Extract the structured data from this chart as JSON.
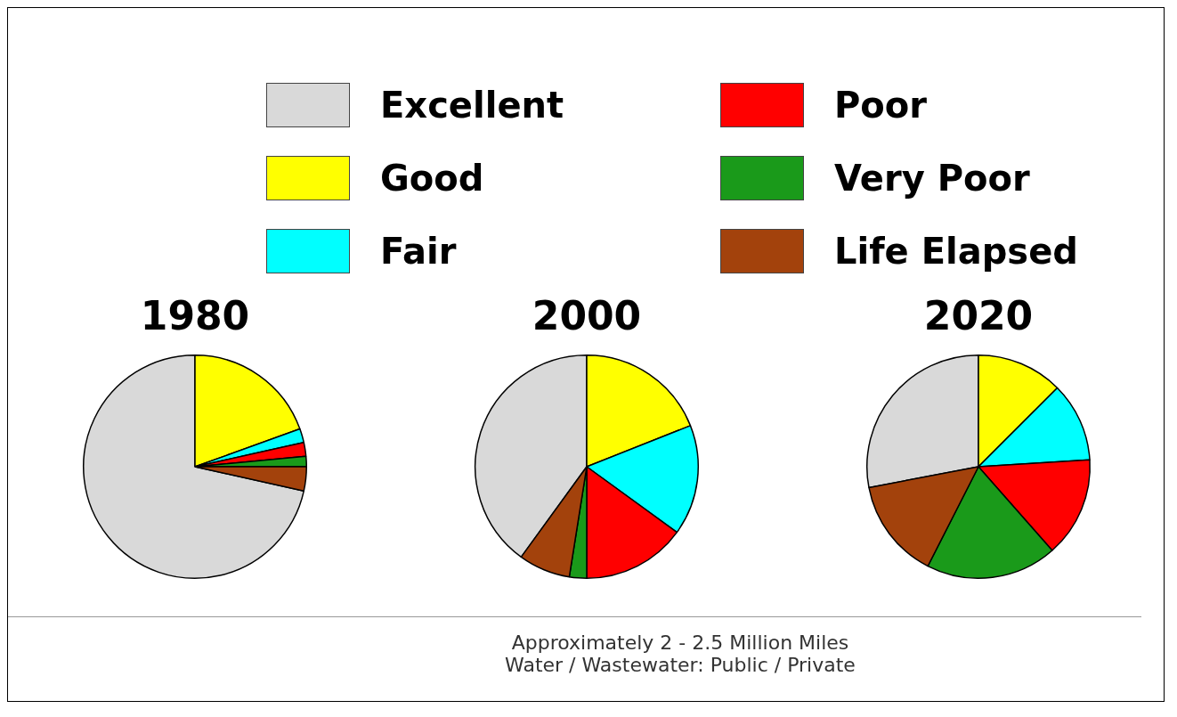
{
  "chart_data": [
    {
      "type": "pie",
      "title": "1980",
      "legend": "top",
      "categories": [
        "Excellent",
        "Good",
        "Fair",
        "Poor",
        "Very Poor",
        "Life Elapsed"
      ],
      "values": [
        71.5,
        19.5,
        2,
        2,
        1.5,
        3.5
      ],
      "colors": [
        "#d9d9d9",
        "#ffff00",
        "#00ffff",
        "#ff0000",
        "#1a9a1a",
        "#a3420c"
      ]
    },
    {
      "type": "pie",
      "title": "2000",
      "categories": [
        null,
        null,
        null,
        null,
        null,
        null
      ],
      "values": [
        40,
        19,
        16,
        15,
        2.5,
        7.5
      ],
      "colors": [
        "#d9d9d9",
        "#ffff00",
        "#00ffff",
        "#ff0000",
        "#1a9a1a",
        "#a3420c"
      ]
    },
    {
      "type": "pie",
      "title": "2020",
      "categories": [
        null,
        null,
        null,
        null,
        null,
        null
      ],
      "values": [
        28,
        12.5,
        11.5,
        14.5,
        19,
        14.5
      ],
      "colors": [
        "#d9d9d9",
        "#ffff00",
        "#00ffff",
        "#ff0000",
        "#1a9a1a",
        "#a3420c"
      ],
      "annotations": [
        "Approximately 2 - 2.5 Million Miles Water / Wastewater: Public / Private"
      ]
    }
  ]
}
